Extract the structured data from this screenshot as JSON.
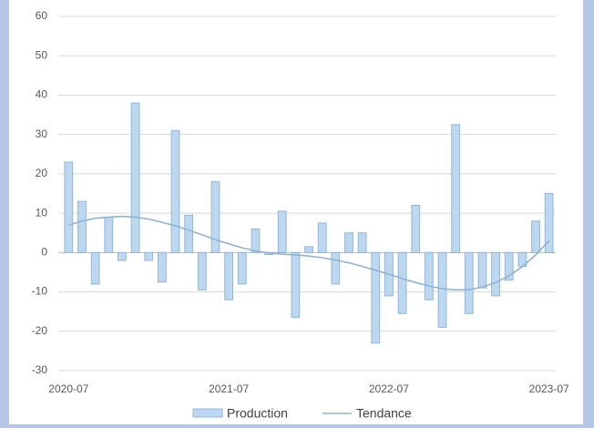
{
  "chart_data": {
    "type": "bar",
    "categories": [
      "2020-07",
      null,
      null,
      null,
      null,
      null,
      null,
      null,
      null,
      null,
      null,
      null,
      "2021-07",
      null,
      null,
      null,
      null,
      null,
      null,
      null,
      null,
      null,
      null,
      null,
      "2022-07",
      null,
      null,
      null,
      null,
      null,
      null,
      null,
      null,
      null,
      null,
      null,
      "2023-07"
    ],
    "series": [
      {
        "name": "Production",
        "type": "bar",
        "color": "#bdd7ee",
        "stroke": "#8fb8de",
        "values": [
          23,
          13,
          -8,
          9,
          -2,
          38,
          -2,
          -7.5,
          31,
          9.5,
          -9.5,
          18,
          -12,
          -8,
          6,
          -0.5,
          10.5,
          -16.5,
          1.5,
          7.5,
          -8,
          5,
          5,
          -23,
          -11,
          -15.5,
          12,
          -12,
          -19,
          32.5,
          -15.5,
          -9,
          -11,
          -7,
          -3.5,
          8,
          15
        ]
      },
      {
        "name": "Tendance",
        "type": "line",
        "color": "#8db3d6",
        "values": [
          7,
          8,
          8.7,
          9,
          9.2,
          9,
          8.5,
          7.7,
          6.8,
          5.7,
          4.5,
          3.3,
          2.2,
          1.2,
          0.4,
          -0.1,
          -0.4,
          -0.6,
          -0.9,
          -1.3,
          -1.9,
          -2.6,
          -3.5,
          -4.5,
          -5.5,
          -6.6,
          -7.6,
          -8.5,
          -9.2,
          -9.5,
          -9.4,
          -8.8,
          -7.6,
          -5.9,
          -3.6,
          -0.6,
          3
        ]
      }
    ],
    "ylim": [
      -30,
      60
    ],
    "yticks": [
      -30,
      -20,
      -10,
      0,
      10,
      20,
      30,
      40,
      50,
      60
    ],
    "grid": true,
    "legend": "bottom"
  }
}
